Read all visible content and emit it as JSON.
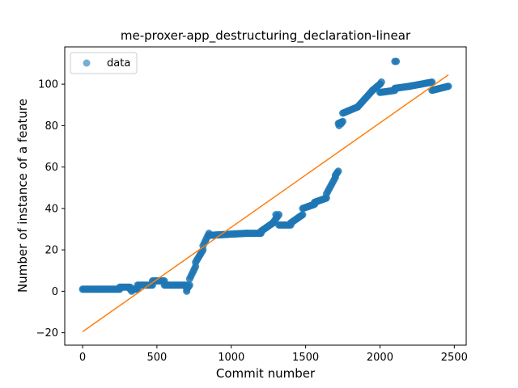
{
  "chart_data": {
    "type": "scatter",
    "title": "me-proxer-app_destructuring_declaration-linear",
    "xlabel": "Commit number",
    "ylabel": "Number of instance of a feature",
    "xlim": [
      -120,
      2580
    ],
    "ylim": [
      -26,
      118
    ],
    "xticks": [
      0,
      500,
      1000,
      1500,
      2000,
      2500
    ],
    "yticks": [
      -20,
      0,
      20,
      40,
      60,
      80,
      100
    ],
    "grid": false,
    "legend": {
      "position": "top-left",
      "entries": [
        "data"
      ]
    },
    "colors": {
      "data": "#1f77b4",
      "fit": "#ff7f0e"
    },
    "series": [
      {
        "name": "data",
        "kind": "scatter",
        "segments": [
          {
            "x0": 0,
            "x1": 250,
            "y0": 1,
            "y1": 1,
            "n": 40
          },
          {
            "x0": 250,
            "x1": 320,
            "y0": 2,
            "y1": 2,
            "n": 10
          },
          {
            "x0": 320,
            "x1": 370,
            "y0": 1,
            "y1": 1,
            "n": 8
          },
          {
            "x0": 370,
            "x1": 470,
            "y0": 3,
            "y1": 3,
            "n": 14
          },
          {
            "x0": 470,
            "x1": 550,
            "y0": 5,
            "y1": 5,
            "n": 12
          },
          {
            "x0": 550,
            "x1": 700,
            "y0": 3,
            "y1": 3,
            "n": 20
          },
          {
            "x0": 700,
            "x1": 720,
            "y0": 1,
            "y1": 3,
            "n": 4
          },
          {
            "x0": 720,
            "x1": 760,
            "y0": 6,
            "y1": 12,
            "n": 6
          },
          {
            "x0": 760,
            "x1": 810,
            "y0": 14,
            "y1": 20,
            "n": 8
          },
          {
            "x0": 810,
            "x1": 850,
            "y0": 22,
            "y1": 28,
            "n": 6
          },
          {
            "x0": 850,
            "x1": 1100,
            "y0": 27,
            "y1": 28,
            "n": 40
          },
          {
            "x0": 1100,
            "x1": 1200,
            "y0": 28,
            "y1": 28,
            "n": 16
          },
          {
            "x0": 1200,
            "x1": 1280,
            "y0": 29,
            "y1": 33,
            "n": 12
          },
          {
            "x0": 1280,
            "x1": 1320,
            "y0": 33,
            "y1": 37,
            "n": 6
          },
          {
            "x0": 1320,
            "x1": 1400,
            "y0": 32,
            "y1": 32,
            "n": 12
          },
          {
            "x0": 1400,
            "x1": 1480,
            "y0": 33,
            "y1": 37,
            "n": 12
          },
          {
            "x0": 1480,
            "x1": 1560,
            "y0": 40,
            "y1": 42,
            "n": 12
          },
          {
            "x0": 1560,
            "x1": 1640,
            "y0": 43,
            "y1": 45,
            "n": 12
          },
          {
            "x0": 1640,
            "x1": 1700,
            "y0": 47,
            "y1": 55,
            "n": 8
          },
          {
            "x0": 1700,
            "x1": 1720,
            "y0": 56,
            "y1": 58,
            "n": 4
          },
          {
            "x0": 1720,
            "x1": 1750,
            "y0": 81,
            "y1": 82,
            "n": 5
          },
          {
            "x0": 1750,
            "x1": 1850,
            "y0": 86,
            "y1": 89,
            "n": 14
          },
          {
            "x0": 1850,
            "x1": 1950,
            "y0": 89,
            "y1": 97,
            "n": 14
          },
          {
            "x0": 1950,
            "x1": 2000,
            "y0": 97,
            "y1": 100,
            "n": 8
          },
          {
            "x0": 2000,
            "x1": 2100,
            "y0": 96,
            "y1": 97,
            "n": 14
          },
          {
            "x0": 2100,
            "x1": 2200,
            "y0": 98,
            "y1": 99,
            "n": 14
          },
          {
            "x0": 2200,
            "x1": 2350,
            "y0": 99,
            "y1": 101,
            "n": 20
          },
          {
            "x0": 2350,
            "x1": 2460,
            "y0": 97,
            "y1": 99,
            "n": 16
          }
        ],
        "points": [
          [
            2000,
            100
          ],
          [
            2010,
            101
          ],
          [
            2100,
            111
          ],
          [
            2110,
            111
          ],
          [
            1725,
            80
          ],
          [
            1740,
            81
          ],
          [
            1300,
            37
          ],
          [
            700,
            0
          ],
          [
            330,
            0
          ]
        ]
      },
      {
        "name": "fit",
        "kind": "line",
        "x": [
          0,
          2460
        ],
        "y": [
          -19.5,
          104.5
        ]
      }
    ]
  }
}
